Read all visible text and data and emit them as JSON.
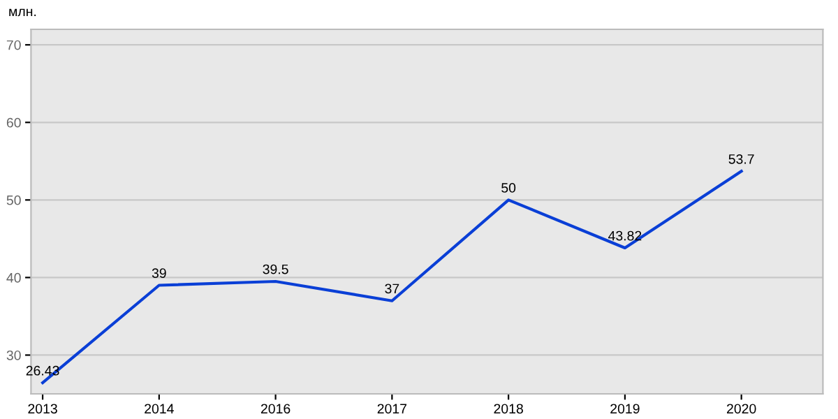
{
  "chart_data": {
    "type": "line",
    "ylabel": "млн.",
    "categories": [
      "2013",
      "2014",
      "2016",
      "2017",
      "2018",
      "2019",
      "2020"
    ],
    "series": [
      {
        "color": "#0a3fd6",
        "values": [
          26.43,
          39,
          39.5,
          37,
          50,
          43.82,
          53.7
        ]
      }
    ],
    "ylim": [
      25,
      72
    ],
    "yticks": [
      30,
      40,
      50,
      60,
      70
    ],
    "grid": "y",
    "data_labels": true,
    "marker": "none",
    "line_style": "solid"
  }
}
